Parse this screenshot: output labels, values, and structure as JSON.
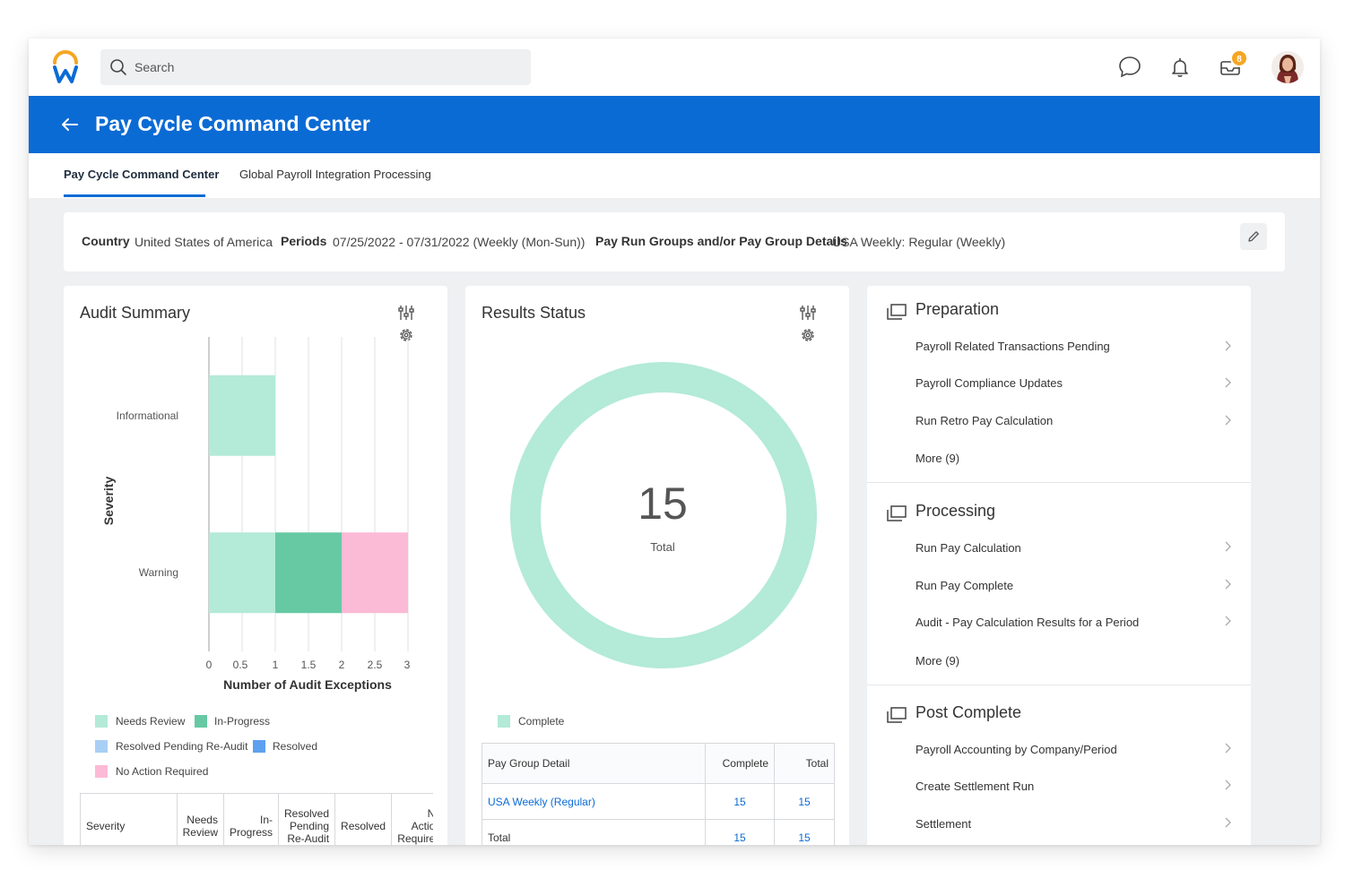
{
  "search": {
    "placeholder": "Search"
  },
  "notifications": {
    "inbox_badge": "8"
  },
  "header": {
    "title": "Pay Cycle Command Center"
  },
  "tabs": [
    {
      "label": "Pay Cycle Command Center",
      "active": true
    },
    {
      "label": "Global Payroll Integration Processing",
      "active": false
    }
  ],
  "filters": {
    "country_label": "Country",
    "country_value": "United States of America",
    "periods_label": "Periods",
    "periods_value": "07/25/2022 - 07/31/2022  (Weekly (Mon-Sun))",
    "paygroup_label": "Pay Run Groups and/or Pay Group Details",
    "paygroup_value": "USA Weekly: Regular (Weekly)"
  },
  "audit_summary": {
    "title": "Audit Summary",
    "table_headers": [
      "Severity",
      "Needs Review",
      "In-Progress",
      "Resolved Pending Re-Audit",
      "Resolved",
      "No Action Required"
    ]
  },
  "chart_data": [
    {
      "type": "bar",
      "orientation": "horizontal",
      "stacked": true,
      "categories": [
        "Informational",
        "Warning"
      ],
      "series": [
        {
          "name": "Needs Review",
          "values": [
            1,
            1
          ],
          "color": "#b3ead8"
        },
        {
          "name": "In-Progress",
          "values": [
            0,
            1
          ],
          "color": "#66c9a4"
        },
        {
          "name": "Resolved Pending Re-Audit",
          "values": [
            0,
            0
          ],
          "color": "#a9cff5"
        },
        {
          "name": "Resolved",
          "values": [
            0,
            0
          ],
          "color": "#5ea0ef"
        },
        {
          "name": "No Action Required",
          "values": [
            0,
            1
          ],
          "color": "#fbbad5"
        }
      ],
      "xlabel": "Number of Audit Exceptions",
      "ylabel": "Severity",
      "xlim": [
        0,
        3
      ],
      "xticks": [
        "0",
        "0.5",
        "1",
        "1.5",
        "2",
        "2.5",
        "3"
      ],
      "grid": true,
      "legend": "bottom"
    },
    {
      "type": "pie",
      "variant": "donut",
      "title": "Results Status",
      "center_value": "15",
      "center_label": "Total",
      "series": [
        {
          "name": "Complete",
          "values": [
            15
          ],
          "color": "#b3ead8"
        }
      ],
      "legend": "bottom-left"
    }
  ],
  "results_status": {
    "table": {
      "headers": [
        "Pay Group Detail",
        "Complete",
        "Total"
      ],
      "rows": [
        {
          "name": "USA Weekly (Regular)",
          "complete": "15",
          "total": "15"
        },
        {
          "name": "Total",
          "complete": "15",
          "total": "15"
        }
      ]
    }
  },
  "sections": [
    {
      "title": "Preparation",
      "items": [
        "Payroll Related Transactions Pending",
        "Payroll Compliance Updates",
        "Run Retro Pay Calculation",
        "More (9)"
      ]
    },
    {
      "title": "Processing",
      "items": [
        "Run Pay Calculation",
        "Run Pay Complete",
        "Audit - Pay Calculation Results for a Period",
        "More (9)"
      ]
    },
    {
      "title": "Post Complete",
      "items": [
        "Payroll Accounting by Company/Period",
        "Create Settlement Run",
        "Settlement"
      ]
    }
  ],
  "colors": {
    "brand_blue": "#0b6bd4",
    "logo_orange": "#f5a623",
    "logo_blue": "#0b6bd4"
  }
}
